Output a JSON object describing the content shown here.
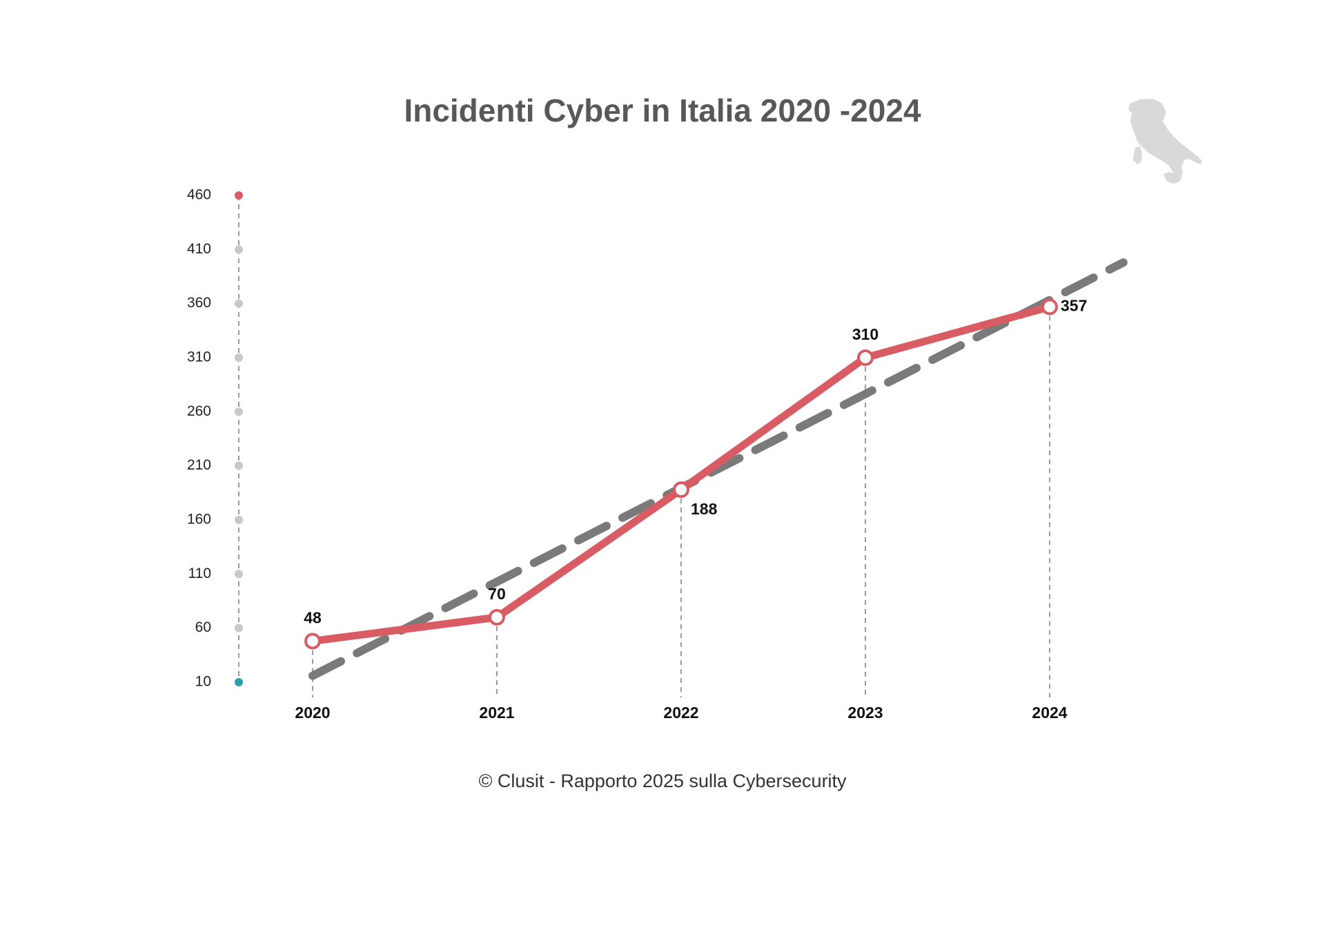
{
  "chart_data": {
    "type": "line",
    "title": "Incidenti Cyber in Italia 2020 -2024",
    "categories": [
      "2020",
      "2021",
      "2022",
      "2023",
      "2024"
    ],
    "series": [
      {
        "values": [
          48,
          70,
          188,
          310,
          357
        ],
        "color": "#d95c64",
        "style": "solid"
      }
    ],
    "trend": {
      "style": "dashed",
      "color": "#7a7a7a",
      "x_range": [
        2020,
        2024.4
      ],
      "values_at_range": [
        16,
        398
      ]
    },
    "y_ticks": [
      "460",
      "410",
      "360",
      "310",
      "260",
      "210",
      "160",
      "110",
      "60",
      "10"
    ],
    "ylim": [
      10,
      460
    ],
    "grid": false,
    "y_axis_dot_colors": {
      "top": "#d95c64",
      "middle": "#c8c8c8",
      "bottom": "#2a9db0"
    },
    "marker_fill": "#ffffff",
    "icon": "italy-map-icon",
    "icon_color": "#d9d9d9"
  },
  "footer": "© Clusit - Rapporto 2025 sulla Cybersecurity"
}
